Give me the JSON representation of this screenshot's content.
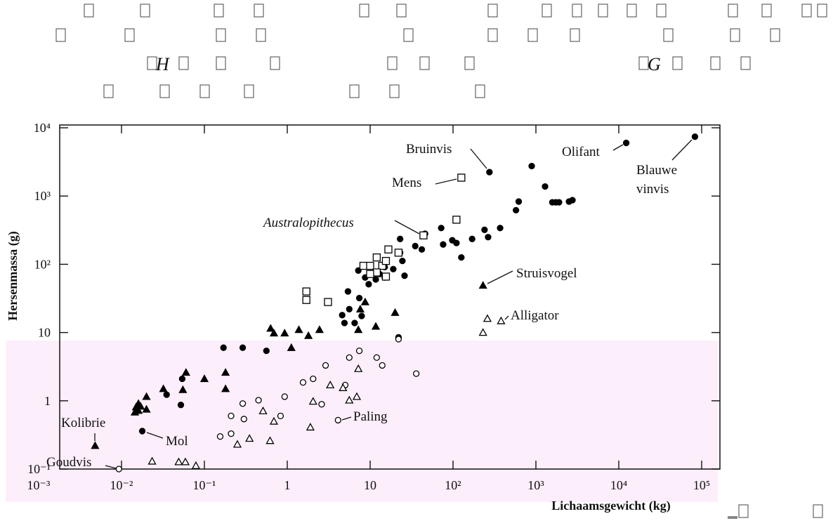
{
  "header": {
    "letters": [
      "H",
      "G"
    ]
  },
  "chart_data": {
    "type": "scatter",
    "xlabel": "Lichaamsgewicht (kg)",
    "ylabel": "Hersenmassa (g)",
    "xscale": "log",
    "yscale": "log",
    "xlim": [
      0.001,
      100000
    ],
    "ylim": [
      0.1,
      10000
    ],
    "xticks": [
      {
        "value": 0.001,
        "label": "10⁻³"
      },
      {
        "value": 0.01,
        "label": "10⁻²"
      },
      {
        "value": 0.1,
        "label": "10⁻¹"
      },
      1,
      10,
      {
        "value": 100,
        "label": "10²"
      },
      {
        "value": 1000,
        "label": "10³"
      },
      {
        "value": 10000,
        "label": "10⁴"
      },
      {
        "value": 100000,
        "label": "10⁵"
      }
    ],
    "yticks": [
      {
        "value": 0.1,
        "label": "10⁻¹"
      },
      1,
      10,
      {
        "value": 100,
        "label": "10²"
      },
      {
        "value": 1000,
        "label": "10³"
      },
      {
        "value": 10000,
        "label": "10⁴"
      }
    ],
    "annotations": [
      "Bruinvis",
      "Mens",
      "Olifant",
      "Blauwe",
      "vinvis",
      "Australopithecus",
      "Struisvogel",
      "Alligator",
      "Paling",
      "Kolibrie",
      "Mol",
      "Goudvis"
    ],
    "series": [
      {
        "marker": "circle-filled",
        "color": "#000000",
        "x": [
          83000,
          12300,
          275,
          890,
          1290,
          1580,
          1740,
          1900,
          2510,
          2760,
          620,
          575,
          370,
          240,
          265,
          170,
          98,
          110,
          72,
          76,
          46,
          42,
          35,
          23,
          23,
          24.5,
          126,
          26,
          19,
          15,
          15,
          13,
          11.7,
          8.7,
          9.6,
          7.2,
          5.4,
          7.4,
          5.6,
          7.9,
          6.5,
          4.9,
          4.6,
          0.17,
          0.29,
          0.054,
          0.035,
          0.052,
          0.0178,
          0.56,
          22
        ],
        "values": [
          7400,
          6000,
          2240,
          2750,
          1380,
          810,
          810,
          810,
          830,
          870,
          830,
          620,
          340,
          320,
          250,
          235,
          225,
          205,
          340,
          195,
          280,
          165,
          185,
          235,
          148,
          112,
          126,
          68,
          85,
          91,
          64,
          72,
          60,
          64,
          51,
          81,
          40,
          32,
          22,
          17.5,
          13.8,
          13.8,
          18,
          6.0,
          6.0,
          2.1,
          1.23,
          0.87,
          0.36,
          5.4,
          8.5
        ]
      },
      {
        "marker": "square-open",
        "color": "#000000",
        "x": [
          126,
          44,
          110,
          16.6,
          22,
          12,
          8.3,
          10,
          14,
          12,
          10,
          15.5,
          3.1,
          1.7,
          1.7,
          15.5
        ],
        "values": [
          1860,
          265,
          450,
          165,
          148,
          126,
          95,
          95,
          95,
          76,
          72,
          66,
          28,
          40,
          30,
          112
        ]
      },
      {
        "marker": "triangle-filled",
        "color": "#000000",
        "x": [
          230,
          0.0048,
          0.63,
          0.69,
          0.93,
          1.38,
          1.8,
          2.45,
          7.2,
          7.6,
          8.7,
          11.7,
          20,
          1.12,
          0.18,
          0.1,
          0.06,
          0.18,
          0.055,
          0.032,
          0.02,
          0.015,
          0.016,
          0.017,
          0.0145,
          0.02,
          0.016
        ],
        "values": [
          49,
          0.22,
          11.5,
          9.8,
          9.8,
          11,
          9,
          11,
          11,
          22,
          28,
          12.3,
          19.6,
          6.0,
          2.6,
          2.1,
          2.6,
          1.5,
          1.45,
          1.5,
          1.15,
          0.81,
          0.72,
          0.83,
          0.68,
          0.75,
          0.91
        ]
      },
      {
        "marker": "circle-open",
        "color": "#000000",
        "x": [
          0.0093,
          4.1,
          36,
          2.9,
          7.4,
          12,
          14,
          22,
          1.55,
          0.93,
          0.45,
          0.29,
          0.3,
          0.21,
          0.21,
          0.155,
          0.83,
          2.6,
          2.05,
          5.0,
          5.6
        ],
        "values": [
          0.1,
          0.52,
          2.5,
          3.3,
          5.4,
          4.3,
          3.3,
          8.0,
          1.86,
          1.15,
          1.02,
          0.91,
          0.54,
          0.6,
          0.33,
          0.3,
          0.6,
          0.89,
          2.1,
          1.7,
          4.3
        ]
      },
      {
        "marker": "triangle-open",
        "color": "#000000",
        "x": [
          380,
          260,
          230,
          7.2,
          6.9,
          5.6,
          4.7,
          3.3,
          2.05,
          1.9,
          0.69,
          0.51,
          0.35,
          0.25,
          0.62,
          0.059,
          0.049,
          0.079,
          0.0234
        ],
        "values": [
          14.8,
          16,
          10,
          2.95,
          1.15,
          1.02,
          1.55,
          1.7,
          0.98,
          0.41,
          0.5,
          0.71,
          0.28,
          0.23,
          0.26,
          0.127,
          0.127,
          0.112,
          0.13
        ]
      }
    ]
  }
}
